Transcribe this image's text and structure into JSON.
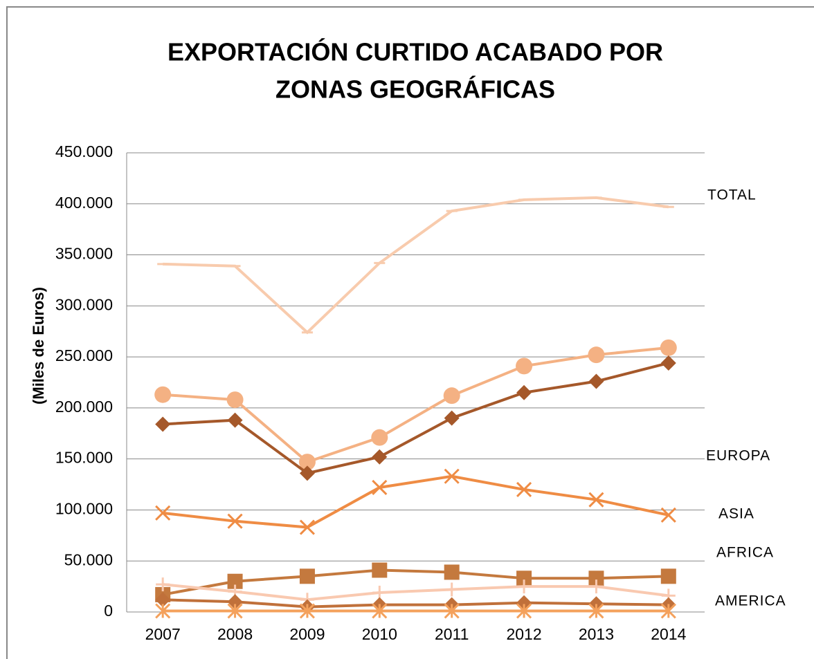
{
  "chart_data": {
    "type": "line",
    "title": [
      "EXPORTACIÓN CURTIDO ACABADO POR",
      "ZONAS GEOGRÁFICAS"
    ],
    "y_label": "(Miles de Euros)",
    "categories": [
      "2007",
      "2008",
      "2009",
      "2010",
      "2011",
      "2012",
      "2013",
      "2014"
    ],
    "series": [
      {
        "color": "#f8cbad",
        "marker": "dash",
        "values": [
          341000,
          339000,
          274000,
          342000,
          393000,
          404000,
          406000,
          397000
        ]
      },
      {
        "color": "#f4b183",
        "marker": "circle",
        "values": [
          213000,
          208000,
          147000,
          171000,
          212000,
          241000,
          252000,
          259000
        ]
      },
      {
        "color": "#a5582a",
        "marker": "diamond",
        "values": [
          184000,
          188000,
          136000,
          152000,
          190000,
          215000,
          226000,
          244000
        ]
      },
      {
        "color": "#ef8c44",
        "marker": "x",
        "values": [
          97000,
          89000,
          83000,
          122000,
          133000,
          120000,
          110000,
          95000
        ]
      },
      {
        "color": "#c4793e",
        "marker": "square",
        "values": [
          17000,
          30000,
          35000,
          41000,
          39000,
          33000,
          33000,
          35000
        ]
      },
      {
        "color": "#f9c9b0",
        "marker": "plus",
        "values": [
          27000,
          20000,
          12000,
          19000,
          22000,
          25000,
          25000,
          16000
        ]
      },
      {
        "color": "#c0703a",
        "marker": "diamond",
        "values": [
          12000,
          10000,
          5000,
          7000,
          7000,
          9000,
          8000,
          7000
        ]
      },
      {
        "color": "#f4a15c",
        "marker": "asterisk",
        "values": [
          1000,
          1000,
          1000,
          1000,
          1000,
          1000,
          1000,
          1000
        ]
      }
    ],
    "annotations": [
      "TOTAL",
      "EUROPA",
      "ASIA",
      "AFRICA",
      "AMERICA"
    ],
    "ylim": [
      0,
      450000
    ],
    "yticks": [
      0,
      {
        "value": 50000,
        "label": "50.000"
      },
      {
        "value": 100000,
        "label": "100.000"
      },
      {
        "value": 150000,
        "label": "150.000"
      },
      {
        "value": 200000,
        "label": "200.000"
      },
      {
        "value": 250000,
        "label": "250.000"
      },
      {
        "value": 300000,
        "label": "300.000"
      },
      {
        "value": 350000,
        "label": "350.000"
      },
      {
        "value": 400000,
        "label": "400.000"
      },
      {
        "value": 450000,
        "label": "450.000"
      }
    ],
    "grid": true
  }
}
